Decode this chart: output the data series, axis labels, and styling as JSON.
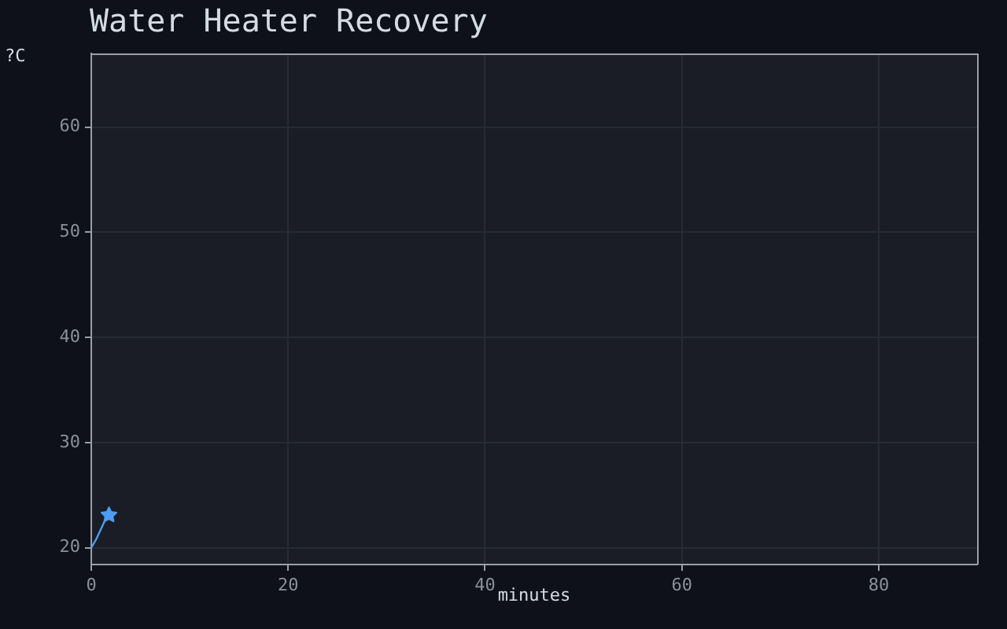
{
  "chart_data": {
    "type": "line",
    "title": "Water Heater Recovery",
    "xlabel": "minutes",
    "ylabel": "?C",
    "xlim": [
      0,
      90
    ],
    "ylim": [
      18.4,
      67
    ],
    "xticks": [
      0,
      20,
      40,
      60,
      80
    ],
    "yticks": [
      20,
      30,
      40,
      50,
      60
    ],
    "grid": true,
    "series": [
      {
        "color": "#4e9cf0",
        "marker": "none",
        "x": [
          0,
          0.5,
          1.0,
          1.4,
          1.8
        ],
        "values": [
          20,
          20.8,
          21.8,
          22.6,
          23.1
        ]
      },
      {
        "type": "scatter",
        "color": "#4e9cf0",
        "marker": "star",
        "x": [
          1.8
        ],
        "values": [
          23.1
        ]
      }
    ]
  }
}
